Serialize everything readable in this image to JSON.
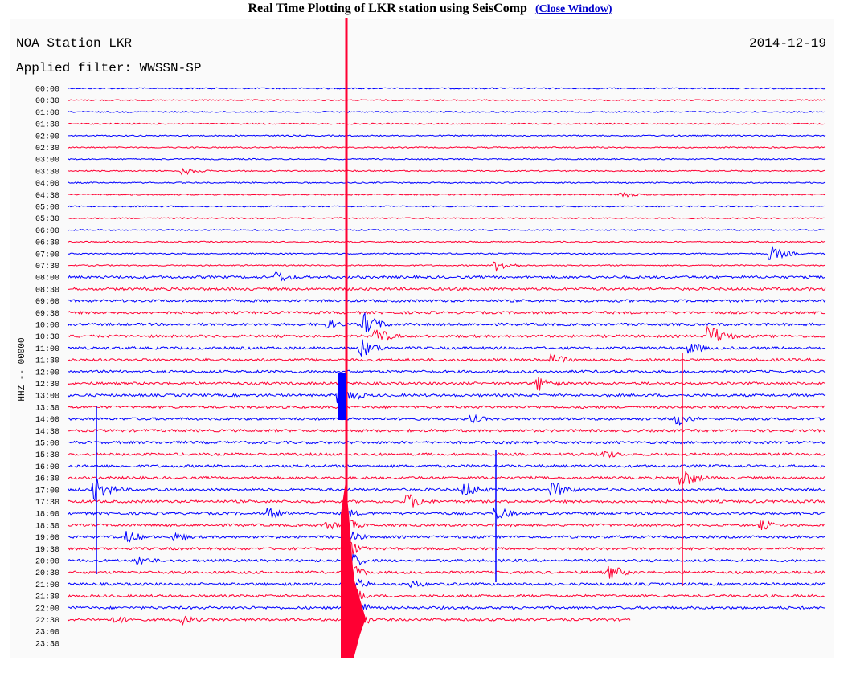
{
  "header": {
    "title": "Real Time Plotting of LKR station using SeisComp",
    "link": "(Close Window)"
  },
  "plot": {
    "station": "NOA Station LKR",
    "date": "2014-12-19",
    "filter": "Applied filter: WWSSN-SP",
    "channel": "HHZ -- 00000",
    "times": [
      "00:00",
      "00:30",
      "01:00",
      "01:30",
      "02:00",
      "02:30",
      "03:00",
      "03:30",
      "04:00",
      "04:30",
      "05:00",
      "05:30",
      "06:00",
      "06:30",
      "07:00",
      "07:30",
      "08:00",
      "08:30",
      "09:00",
      "09:30",
      "10:00",
      "10:30",
      "11:00",
      "11:30",
      "12:00",
      "12:30",
      "13:00",
      "13:30",
      "14:00",
      "14:30",
      "15:00",
      "15:30",
      "16:00",
      "16:30",
      "17:00",
      "17:30",
      "18:00",
      "18:30",
      "19:00",
      "19:30",
      "20:00",
      "20:30",
      "21:00",
      "21:30",
      "22:00",
      "22:30",
      "23:00",
      "23:30"
    ]
  }
}
